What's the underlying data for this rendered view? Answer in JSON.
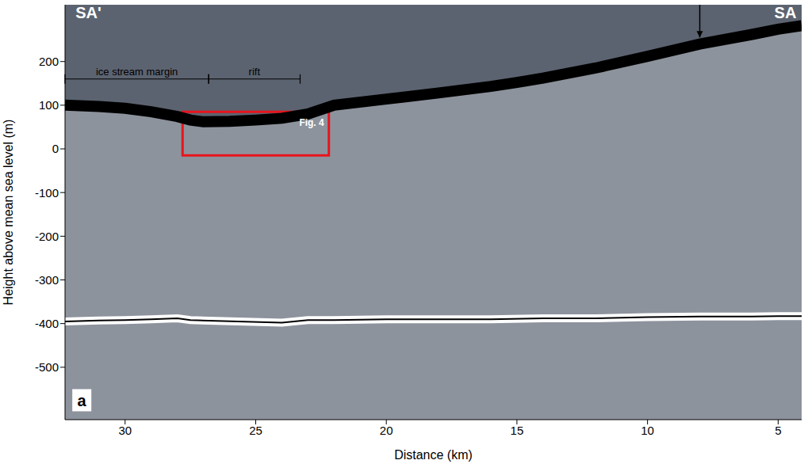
{
  "chart_data": {
    "type": "line",
    "x_label": "Distance (km)",
    "y_label": "Height above mean sea level (m)",
    "xlim": [
      32.3,
      4.1
    ],
    "xticks": [
      30,
      25,
      20,
      15,
      10,
      5
    ],
    "ylim": [
      -620,
      330
    ],
    "yticks": [
      -500,
      -400,
      -300,
      -200,
      -100,
      0,
      100,
      200
    ],
    "grid": false,
    "series": [
      {
        "color": "#000000",
        "x": [
          32.3,
          31,
          30,
          29,
          28,
          27.5,
          27,
          26,
          25,
          24,
          23,
          22.5,
          22,
          20,
          18,
          16,
          15,
          14,
          12,
          10,
          8,
          6,
          5,
          4.1
        ],
        "values": [
          100,
          97,
          93,
          85,
          74,
          66,
          62,
          63,
          66,
          70,
          80,
          90,
          100,
          114,
          128,
          143,
          152,
          162,
          185,
          212,
          240,
          262,
          274,
          282
        ]
      },
      {
        "color": "#ffffff",
        "x": [
          32.3,
          31,
          30,
          29,
          28,
          27.5,
          24,
          23,
          22,
          20,
          18,
          16,
          14,
          12,
          10,
          8,
          6,
          5,
          4.1
        ],
        "values": [
          -395,
          -393,
          -392,
          -390,
          -388,
          -392,
          -398,
          -392,
          -392,
          -390,
          -390,
          -390,
          -388,
          -388,
          -385,
          -384,
          -384,
          -383,
          -383
        ]
      }
    ],
    "annotations": [
      {
        "text": "SA'",
        "x": 31.9,
        "y": 300,
        "color": "#ffffff"
      },
      {
        "text": "SA",
        "x": 4.3,
        "y": 300,
        "color": "#ffffff"
      },
      {
        "text": "a",
        "x": 31.9,
        "y": -590,
        "color": "#000000"
      }
    ],
    "brackets": [
      {
        "text": "ice stream margin",
        "x": [
          32.3,
          26.8
        ],
        "y": 160
      },
      {
        "text": "rift",
        "x": [
          26.8,
          23.3
        ],
        "y": 160
      }
    ],
    "box": {
      "text": "Fig. 4",
      "x": [
        27.8,
        22.2
      ],
      "y": [
        -15,
        85
      ],
      "color": "#e8141c"
    },
    "arrow": {
      "x": 8,
      "y": [
        330,
        255
      ]
    }
  }
}
